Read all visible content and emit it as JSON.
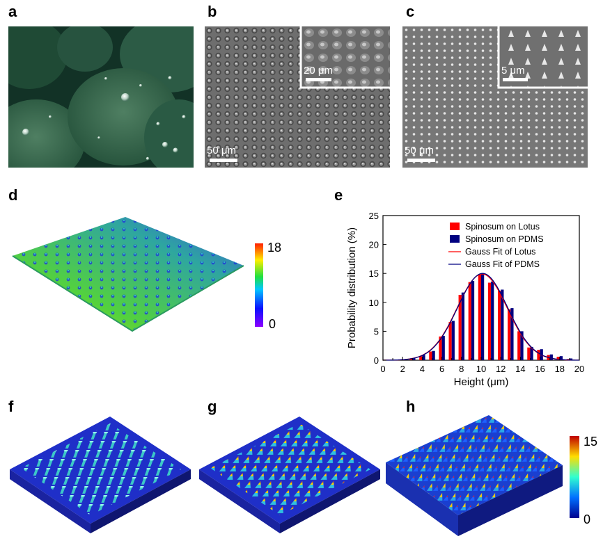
{
  "panels": {
    "a": {
      "label": "a"
    },
    "b": {
      "label": "b",
      "scale_main": "50 μm",
      "scale_inset": "20 μm"
    },
    "c": {
      "label": "c",
      "scale_main": "50 μm",
      "scale_inset": "5 μm"
    },
    "d": {
      "label": "d",
      "colorbar_max": "18",
      "colorbar_min": "0"
    },
    "e": {
      "label": "e"
    },
    "f": {
      "label": "f"
    },
    "g": {
      "label": "g"
    },
    "h": {
      "label": "h",
      "colorbar_max": "15",
      "colorbar_min": "0"
    }
  },
  "colors": {
    "lotus": "#ff0000",
    "pdms": "#000080",
    "fit_lotus": "#ff0000",
    "fit_pdms": "#000080"
  },
  "chart_data": {
    "type": "bar",
    "xlabel": "Height (μm)",
    "ylabel": "Probability distribution  (%)",
    "xlim": [
      0,
      20
    ],
    "ylim": [
      0,
      25
    ],
    "xticks": [
      0,
      2,
      4,
      6,
      8,
      10,
      12,
      14,
      16,
      18,
      20
    ],
    "yticks": [
      0,
      5,
      10,
      15,
      20,
      25
    ],
    "legend_position": "top-right",
    "x": [
      2,
      3,
      4,
      5,
      6,
      7,
      8,
      9,
      10,
      11,
      12,
      13,
      14,
      15,
      16,
      17,
      18,
      19
    ],
    "series": [
      {
        "name": "Spinosum on Lotus",
        "values": [
          0.1,
          0.3,
          0.7,
          1.5,
          4.1,
          6.6,
          11.3,
          13.5,
          14.8,
          13.4,
          12.0,
          8.8,
          5.0,
          2.2,
          1.8,
          0.9,
          0.6,
          0.2
        ]
      },
      {
        "name": "Spinosum on PDMS",
        "values": [
          0.1,
          0.3,
          0.9,
          1.6,
          4.2,
          6.8,
          11.7,
          13.7,
          15.0,
          13.6,
          12.2,
          9.0,
          5.0,
          2.3,
          1.9,
          1.0,
          0.7,
          0.3
        ]
      }
    ],
    "fits": [
      {
        "name": "Gauss Fit of Lotus",
        "mean": 10.1,
        "amplitude": 14.9,
        "sigma": 2.55
      },
      {
        "name": "Gauss Fit of PDMS",
        "mean": 10.15,
        "amplitude": 15.0,
        "sigma": 2.55
      }
    ]
  }
}
